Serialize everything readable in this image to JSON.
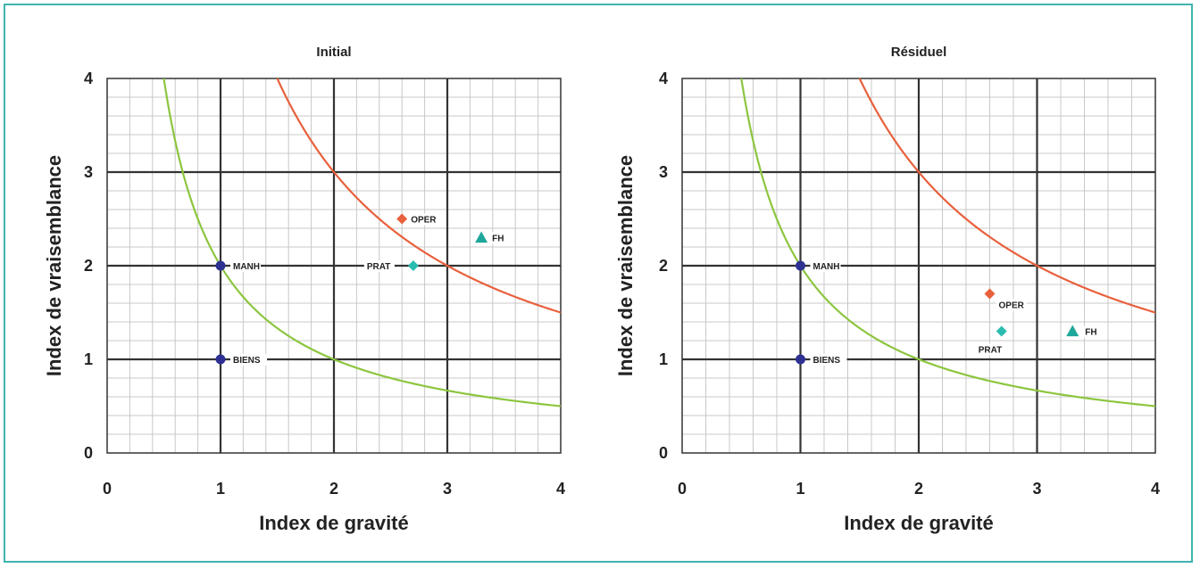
{
  "chart_data": [
    {
      "type": "scatter",
      "title": "Initial",
      "xlabel": "Index de gravité",
      "ylabel": "Index de vraisemblance",
      "xlim": [
        0,
        4
      ],
      "ylim": [
        0,
        4
      ],
      "xticks": [
        "0",
        "1",
        "2",
        "3",
        "4"
      ],
      "yticks": [
        "0",
        "1",
        "2",
        "3",
        "4"
      ],
      "grid": true,
      "curves": [
        {
          "type": "hyperbola",
          "k": 2,
          "color": "#8cc63f"
        },
        {
          "type": "hyperbola",
          "k": 6,
          "color": "#e8603c"
        }
      ],
      "points": [
        {
          "label": "MANH",
          "x": 1,
          "y": 2,
          "marker": "circle",
          "color": "#2e3192"
        },
        {
          "label": "BIENS",
          "x": 1,
          "y": 1,
          "marker": "circle",
          "color": "#2e3192"
        },
        {
          "label": "OPER",
          "x": 2.6,
          "y": 2.5,
          "marker": "diamond",
          "color": "#e8603c"
        },
        {
          "label": "FH",
          "x": 3.3,
          "y": 2.3,
          "marker": "triangle",
          "color": "#1fa69a"
        },
        {
          "label": "PRAT",
          "x": 2.7,
          "y": 2,
          "marker": "diamond",
          "color": "#2bbcb0"
        }
      ]
    },
    {
      "type": "scatter",
      "title": "Résiduel",
      "xlabel": "Index de gravité",
      "ylabel": "Index de vraisemblance",
      "xlim": [
        0,
        4
      ],
      "ylim": [
        0,
        4
      ],
      "xticks": [
        "0",
        "1",
        "2",
        "3",
        "4"
      ],
      "yticks": [
        "0",
        "1",
        "2",
        "3",
        "4"
      ],
      "grid": true,
      "curves": [
        {
          "type": "hyperbola",
          "k": 2,
          "color": "#8cc63f"
        },
        {
          "type": "hyperbola",
          "k": 6,
          "color": "#e8603c"
        }
      ],
      "points": [
        {
          "label": "MANH",
          "x": 1,
          "y": 2,
          "marker": "circle",
          "color": "#2e3192"
        },
        {
          "label": "BIENS",
          "x": 1,
          "y": 1,
          "marker": "circle",
          "color": "#2e3192"
        },
        {
          "label": "OPER",
          "x": 2.6,
          "y": 1.7,
          "marker": "diamond",
          "color": "#e8603c"
        },
        {
          "label": "PRAT",
          "x": 2.7,
          "y": 1.3,
          "marker": "diamond",
          "color": "#2bbcb0"
        },
        {
          "label": "FH",
          "x": 3.3,
          "y": 1.3,
          "marker": "triangle",
          "color": "#1fa69a"
        }
      ]
    }
  ]
}
